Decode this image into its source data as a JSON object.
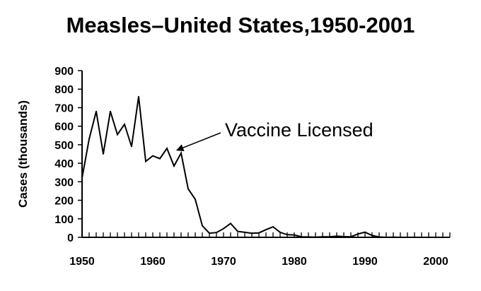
{
  "chart_data": {
    "type": "line",
    "title": "Measles–United States,1950-2001",
    "xlabel": "",
    "ylabel": "Cases (thousands)",
    "xlim": [
      1950,
      2001
    ],
    "ylim": [
      0,
      900
    ],
    "x_ticks": [
      1950,
      1960,
      1970,
      1980,
      1990,
      2000
    ],
    "y_ticks": [
      0,
      100,
      200,
      300,
      400,
      500,
      600,
      700,
      800,
      900
    ],
    "grid": false,
    "series": [
      {
        "x": [
          1950,
          1951,
          1952,
          1953,
          1954,
          1955,
          1956,
          1957,
          1958,
          1959,
          1960,
          1961,
          1962,
          1963,
          1964,
          1965,
          1966,
          1967,
          1968,
          1969,
          1970,
          1971,
          1972,
          1973,
          1974,
          1975,
          1976,
          1977,
          1978,
          1979,
          1980,
          1981,
          1982,
          1983,
          1984,
          1985,
          1986,
          1987,
          1988,
          1989,
          1990,
          1991,
          1992,
          1993,
          1994,
          1995,
          1996,
          1997,
          1998,
          1999,
          2000,
          2001
        ],
        "values": [
          320,
          530,
          680,
          450,
          680,
          555,
          610,
          490,
          760,
          410,
          440,
          425,
          480,
          385,
          455,
          262,
          205,
          63,
          22,
          26,
          47,
          75,
          32,
          27,
          22,
          24,
          41,
          57,
          27,
          14,
          13,
          3,
          2,
          1,
          3,
          3,
          6,
          4,
          3,
          18,
          28,
          10,
          2,
          0,
          1,
          0,
          0,
          0,
          0,
          0,
          0,
          0
        ]
      }
    ],
    "annotations": [
      {
        "text": "Vaccine Licensed",
        "x": 1963,
        "y": 455
      }
    ]
  }
}
